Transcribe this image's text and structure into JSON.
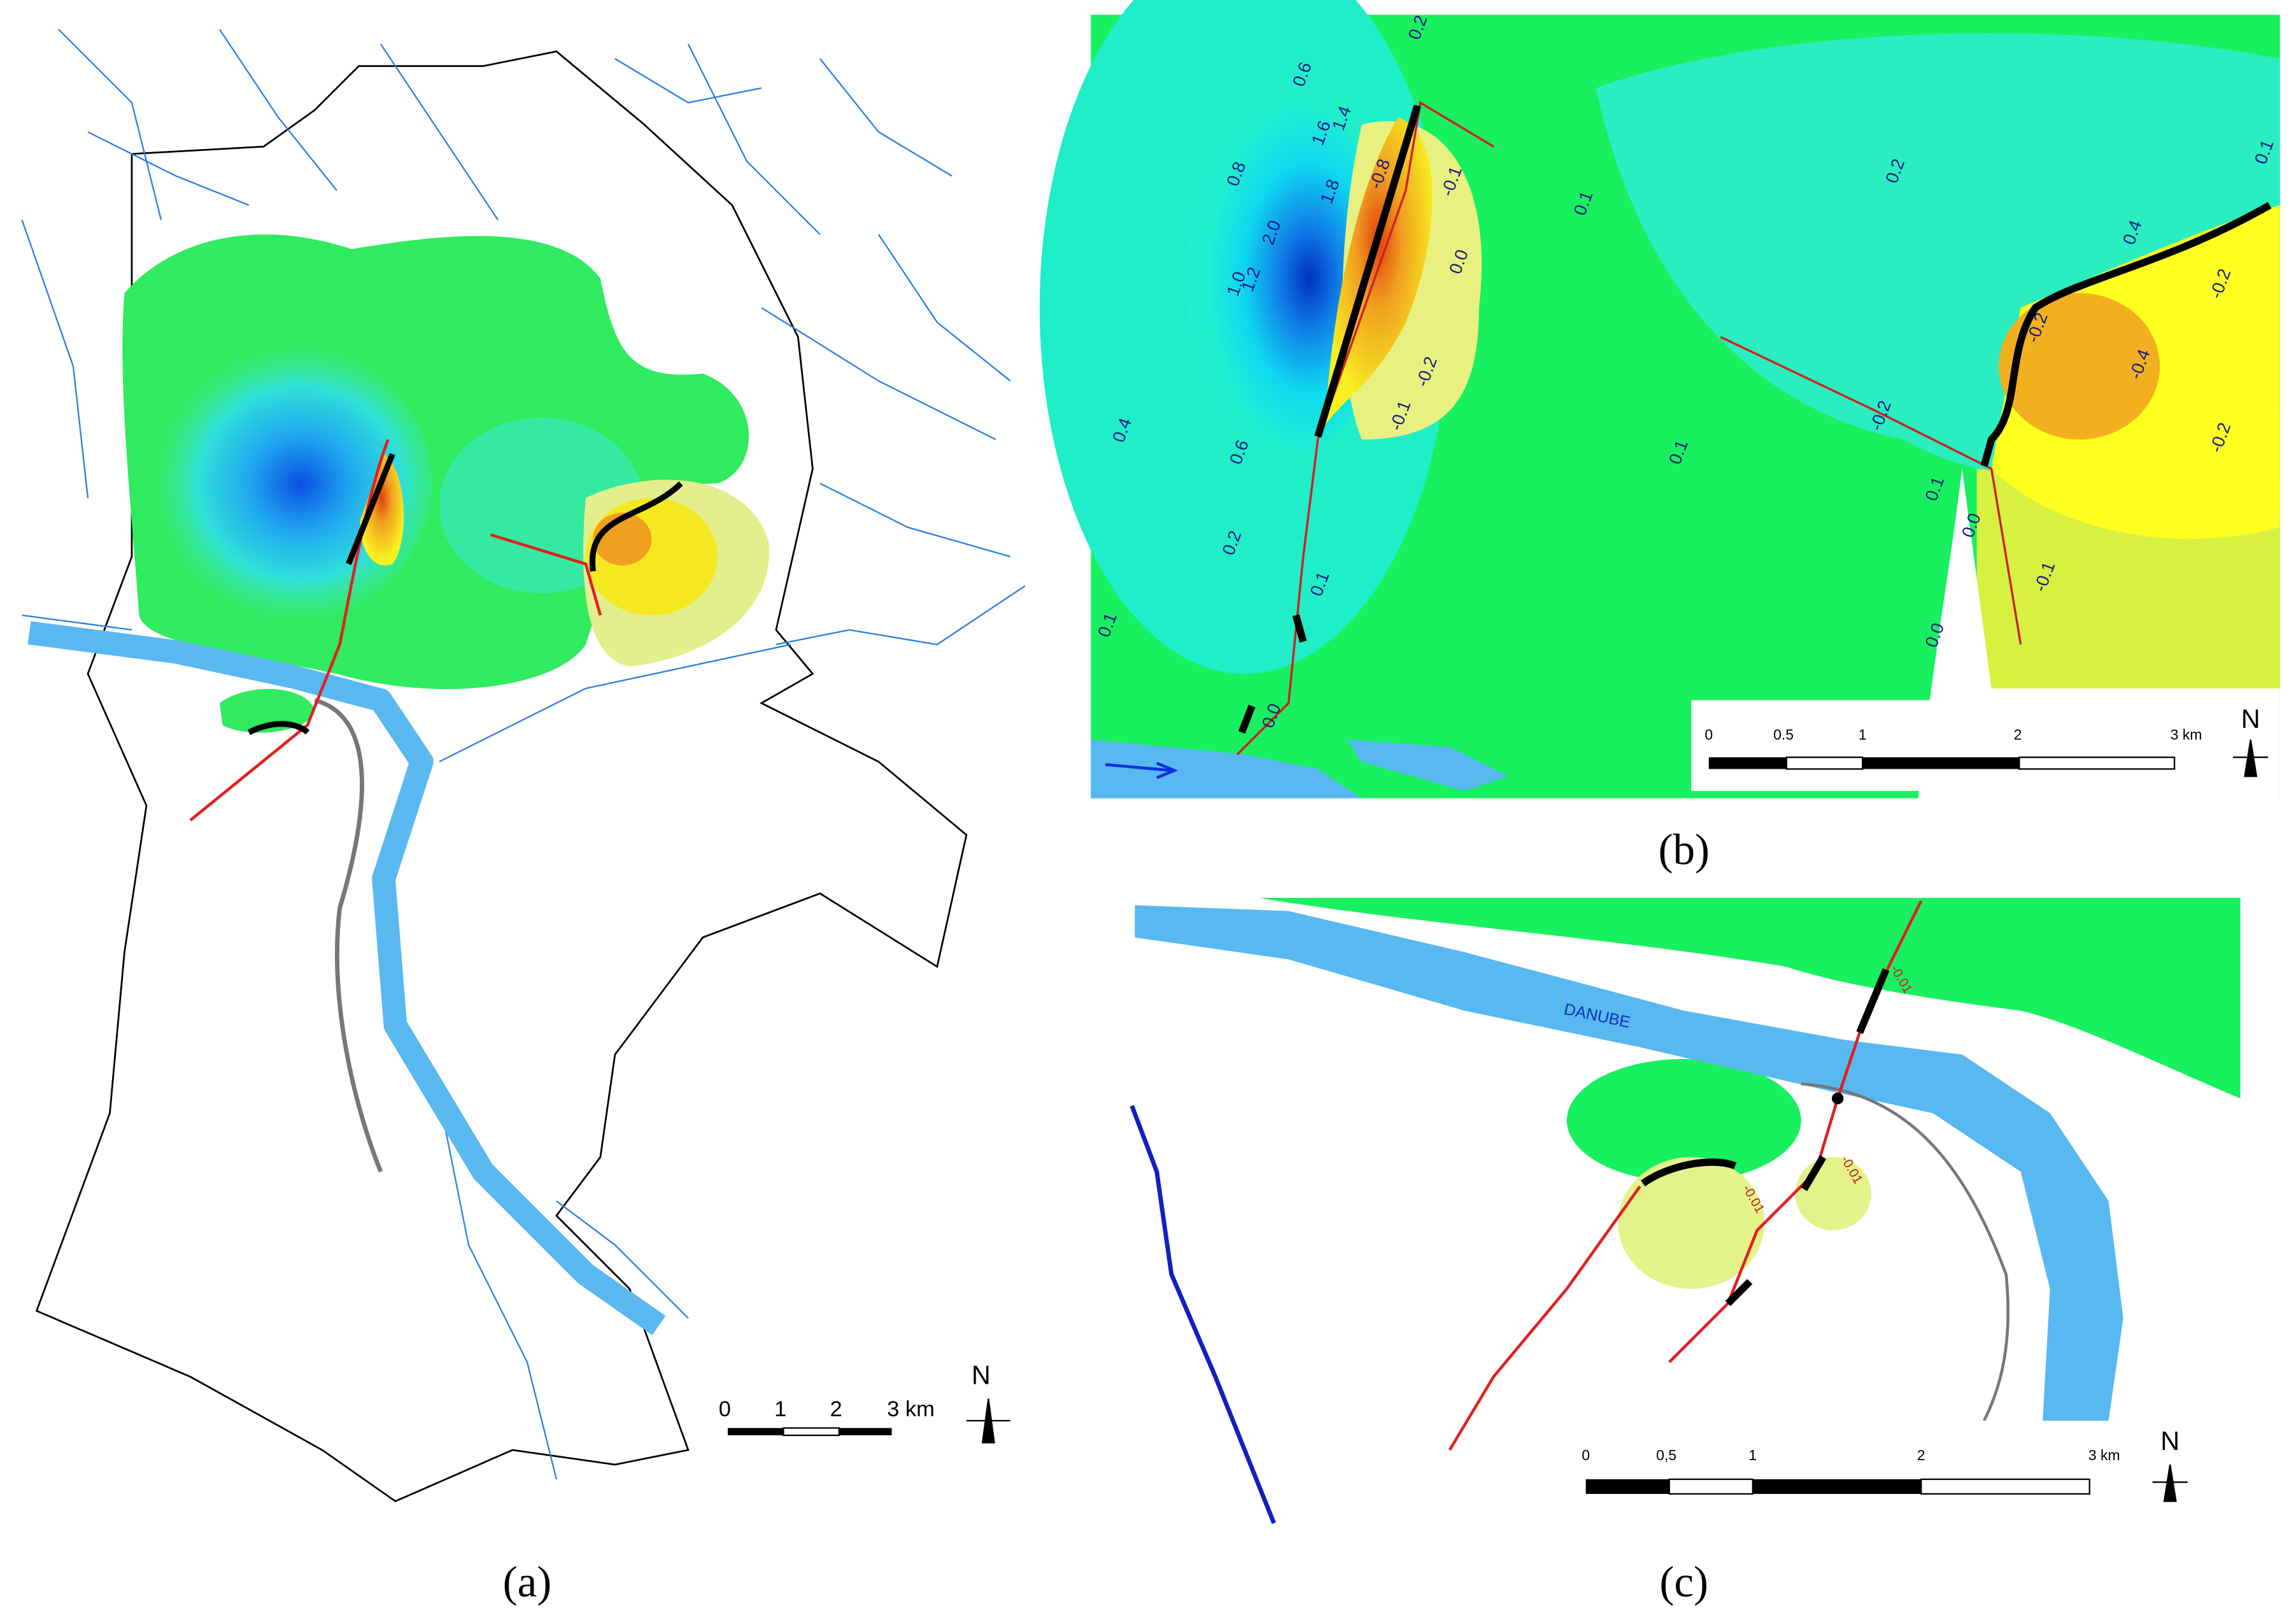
{
  "panels": [
    {
      "label": "(a)",
      "scale_labels": [
        "0",
        "1",
        "2",
        "3 km"
      ],
      "north": "N"
    },
    {
      "label": "(b)",
      "scale_labels": [
        "0",
        "0.5",
        "1",
        "2",
        "3 km"
      ],
      "north": "N",
      "contour_labels": [
        "0.2",
        "0.6",
        "0.8",
        "1.6",
        "1.4",
        "1.8",
        "2.0",
        "1.0",
        "1.2",
        "-0.8",
        "-0.1",
        "0.0",
        "-0.2",
        "-0.1",
        "0.4",
        "0.6",
        "0.2",
        "0.1",
        "0.1",
        "0.0",
        "0.1",
        "0.1",
        "0.2",
        "0.4",
        "-0.2",
        "-0.4",
        "-0.2",
        "-0.2",
        "0.1",
        "0.0",
        "-0.1",
        "0.0",
        "0.1",
        "-0.2"
      ]
    },
    {
      "label": "(c)",
      "scale_labels": [
        "0",
        "0,5",
        "1",
        "2",
        "3 km"
      ],
      "north": "N",
      "river_label": "DANUBE",
      "contour_labels": [
        "-0.01",
        "-0.01",
        "-0.01"
      ]
    }
  ]
}
